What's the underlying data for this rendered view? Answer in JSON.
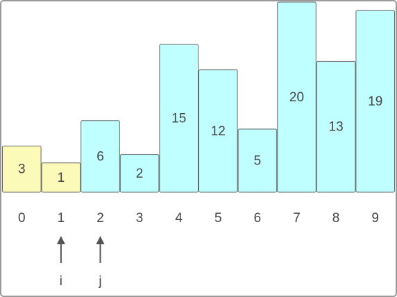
{
  "bars": [
    {
      "index": "0",
      "value": 3,
      "color": "#fbfab8"
    },
    {
      "index": "1",
      "value": 1,
      "color": "#fbfab8"
    },
    {
      "index": "2",
      "value": 6,
      "color": "#bfffff"
    },
    {
      "index": "3",
      "value": 2,
      "color": "#bfffff"
    },
    {
      "index": "4",
      "value": 15,
      "color": "#bfffff"
    },
    {
      "index": "5",
      "value": 12,
      "color": "#bfffff"
    },
    {
      "index": "6",
      "value": 5,
      "color": "#bfffff"
    },
    {
      "index": "7",
      "value": 20,
      "color": "#bfffff"
    },
    {
      "index": "8",
      "value": 13,
      "color": "#bfffff"
    },
    {
      "index": "9",
      "value": 19,
      "color": "#bfffff"
    }
  ],
  "pointers": [
    {
      "label": "i",
      "bar": 1
    },
    {
      "label": "j",
      "bar": 2
    }
  ]
}
